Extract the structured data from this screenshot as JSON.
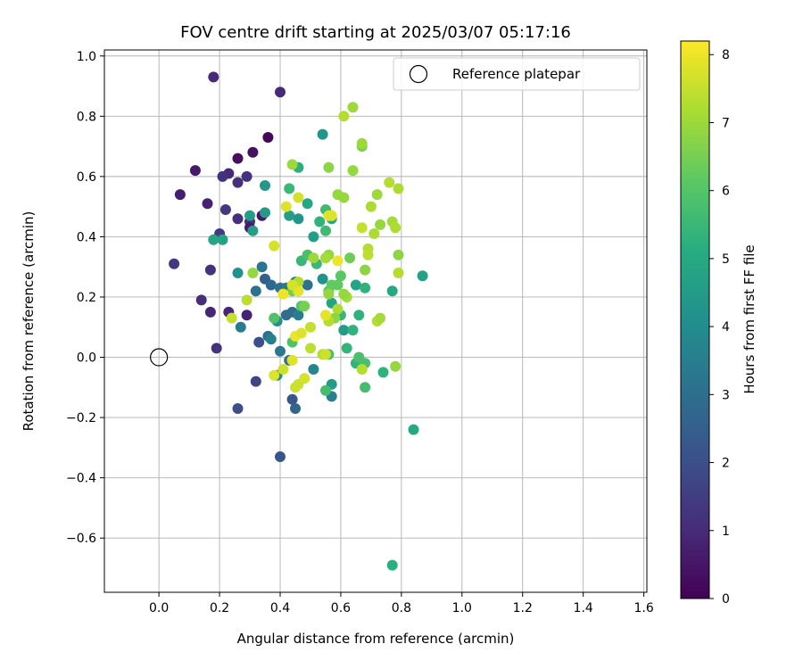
{
  "chart_data": {
    "type": "scatter",
    "title": "FOV centre drift starting at 2025/03/07 05:17:16",
    "xlabel": "Angular distance from reference (arcmin)",
    "ylabel": "Rotation from reference (arcmin)",
    "xlim": [
      -0.18,
      1.61
    ],
    "ylim": [
      -0.78,
      1.02
    ],
    "xticks": [
      0.0,
      0.2,
      0.4,
      0.6,
      0.8,
      1.0,
      1.2,
      1.4,
      1.6
    ],
    "xtick_labels": [
      "0.0",
      "0.2",
      "0.4",
      "0.6",
      "0.8",
      "1.0",
      "1.2",
      "1.4",
      "1.6"
    ],
    "yticks": [
      -0.6,
      -0.4,
      -0.2,
      0.0,
      0.2,
      0.4,
      0.6,
      0.8,
      1.0
    ],
    "ytick_labels": [
      "−0.6",
      "−0.4",
      "−0.2",
      "0.0",
      "0.2",
      "0.4",
      "0.6",
      "0.8",
      "1.0"
    ],
    "grid": true,
    "legend": {
      "placement": "top-right",
      "entries": [
        "Reference platepar"
      ]
    },
    "reference_point": {
      "x": 0.0,
      "y": 0.0
    },
    "colorbar": {
      "label": "Hours from first FF file",
      "range": [
        0,
        8.2
      ],
      "ticks": [
        0,
        1,
        2,
        3,
        4,
        5,
        6,
        7,
        8
      ],
      "tick_labels": [
        "0",
        "1",
        "2",
        "3",
        "4",
        "5",
        "6",
        "7",
        "8"
      ],
      "colormap": "viridis",
      "stops": [
        "#440154",
        "#472c7a",
        "#3b518b",
        "#2c718e",
        "#21908d",
        "#27ad81",
        "#5cc863",
        "#aadc32",
        "#fde725"
      ]
    },
    "points": [
      [
        0.18,
        0.93,
        1.0
      ],
      [
        0.4,
        0.88,
        1.0
      ],
      [
        0.36,
        0.73,
        0.2
      ],
      [
        0.26,
        0.66,
        0.3
      ],
      [
        0.31,
        0.68,
        0.4
      ],
      [
        0.12,
        0.62,
        0.6
      ],
      [
        0.23,
        0.61,
        1.0
      ],
      [
        0.21,
        0.6,
        1.2
      ],
      [
        0.29,
        0.6,
        1.2
      ],
      [
        0.26,
        0.58,
        1.1
      ],
      [
        0.07,
        0.54,
        0.7
      ],
      [
        0.16,
        0.51,
        0.8
      ],
      [
        0.22,
        0.49,
        1.3
      ],
      [
        0.26,
        0.46,
        1.1
      ],
      [
        0.3,
        0.45,
        1.2
      ],
      [
        0.34,
        0.47,
        0.5
      ],
      [
        0.2,
        0.41,
        1.4
      ],
      [
        0.3,
        0.43,
        0.6
      ],
      [
        0.05,
        0.31,
        1.3
      ],
      [
        0.17,
        0.29,
        1.2
      ],
      [
        0.14,
        0.19,
        1.1
      ],
      [
        0.17,
        0.15,
        0.9
      ],
      [
        0.23,
        0.15,
        0.9
      ],
      [
        0.29,
        0.14,
        0.8
      ],
      [
        0.19,
        0.03,
        1.2
      ],
      [
        0.54,
        0.74,
        4.3
      ],
      [
        0.35,
        0.57,
        4.4
      ],
      [
        0.31,
        0.42,
        4.6
      ],
      [
        0.18,
        0.39,
        4.9
      ],
      [
        0.21,
        0.39,
        4.7
      ],
      [
        0.3,
        0.47,
        4.6
      ],
      [
        0.35,
        0.48,
        4.5
      ],
      [
        0.26,
        0.28,
        4.2
      ],
      [
        0.34,
        0.3,
        3.2
      ],
      [
        0.32,
        0.22,
        3.1
      ],
      [
        0.35,
        0.26,
        2.5
      ],
      [
        0.37,
        0.24,
        2.8
      ],
      [
        0.4,
        0.23,
        3.1
      ],
      [
        0.42,
        0.23,
        3.3
      ],
      [
        0.27,
        0.1,
        3.4
      ],
      [
        0.33,
        0.05,
        2.0
      ],
      [
        0.36,
        0.07,
        3.0
      ],
      [
        0.37,
        0.06,
        3.6
      ],
      [
        0.4,
        0.02,
        3.3
      ],
      [
        0.39,
        0.12,
        4.1
      ],
      [
        0.42,
        0.14,
        2.9
      ],
      [
        0.44,
        0.15,
        2.9
      ],
      [
        0.46,
        0.14,
        3.5
      ],
      [
        0.45,
        0.25,
        3.5
      ],
      [
        0.49,
        0.24,
        3.1
      ],
      [
        0.32,
        -0.08,
        1.7
      ],
      [
        0.26,
        -0.17,
        2.0
      ],
      [
        0.39,
        -0.06,
        4.0
      ],
      [
        0.43,
        -0.01,
        2.9
      ],
      [
        0.44,
        -0.14,
        2.2
      ],
      [
        0.45,
        -0.17,
        2.7
      ],
      [
        0.51,
        -0.04,
        3.7
      ],
      [
        0.57,
        -0.13,
        3.5
      ],
      [
        0.57,
        -0.09,
        4.5
      ],
      [
        0.4,
        -0.33,
        2.2
      ],
      [
        0.43,
        0.56,
        5.5
      ],
      [
        0.46,
        0.63,
        5.2
      ],
      [
        0.43,
        0.47,
        4.6
      ],
      [
        0.46,
        0.46,
        4.3
      ],
      [
        0.49,
        0.51,
        4.9
      ],
      [
        0.51,
        0.4,
        4.6
      ],
      [
        0.53,
        0.45,
        5.3
      ],
      [
        0.55,
        0.42,
        5.6
      ],
      [
        0.55,
        0.49,
        5.6
      ],
      [
        0.57,
        0.46,
        5.0
      ],
      [
        0.47,
        0.32,
        5.5
      ],
      [
        0.49,
        0.34,
        5.8
      ],
      [
        0.52,
        0.31,
        5.5
      ],
      [
        0.54,
        0.26,
        4.2
      ],
      [
        0.56,
        0.22,
        6.1
      ],
      [
        0.57,
        0.24,
        6.2
      ],
      [
        0.59,
        0.24,
        6.2
      ],
      [
        0.6,
        0.27,
        6.1
      ],
      [
        0.57,
        0.18,
        4.8
      ],
      [
        0.6,
        0.14,
        5.5
      ],
      [
        0.61,
        0.09,
        4.5
      ],
      [
        0.62,
        0.03,
        5.4
      ],
      [
        0.64,
        0.09,
        5.3
      ],
      [
        0.66,
        0.14,
        5.3
      ],
      [
        0.65,
        0.24,
        4.8
      ],
      [
        0.68,
        0.23,
        5.3
      ],
      [
        0.77,
        0.22,
        5.0
      ],
      [
        0.87,
        0.27,
        4.7
      ],
      [
        0.65,
        -0.02,
        5.4
      ],
      [
        0.68,
        -0.02,
        5.8
      ],
      [
        0.66,
        0.0,
        5.8
      ],
      [
        0.68,
        -0.1,
        5.7
      ],
      [
        0.74,
        -0.05,
        5.3
      ],
      [
        0.84,
        -0.24,
        5.0
      ],
      [
        0.77,
        -0.69,
        5.2
      ],
      [
        0.55,
        -0.11,
        5.7
      ],
      [
        0.56,
        0.01,
        5.8
      ],
      [
        0.44,
        0.05,
        5.9
      ],
      [
        0.38,
        0.13,
        5.9
      ],
      [
        0.47,
        0.17,
        6.0
      ],
      [
        0.61,
        0.8,
        7.3
      ],
      [
        0.64,
        0.83,
        7.0
      ],
      [
        0.67,
        0.7,
        6.6
      ],
      [
        0.67,
        0.71,
        7.0
      ],
      [
        0.44,
        0.64,
        7.0
      ],
      [
        0.56,
        0.63,
        6.8
      ],
      [
        0.64,
        0.62,
        6.9
      ],
      [
        0.59,
        0.54,
        6.9
      ],
      [
        0.61,
        0.53,
        6.9
      ],
      [
        0.7,
        0.5,
        7.2
      ],
      [
        0.72,
        0.54,
        7.0
      ],
      [
        0.76,
        0.58,
        7.3
      ],
      [
        0.79,
        0.56,
        7.2
      ],
      [
        0.73,
        0.44,
        6.9
      ],
      [
        0.77,
        0.45,
        7.1
      ],
      [
        0.78,
        0.43,
        7.2
      ],
      [
        0.71,
        0.41,
        7.2
      ],
      [
        0.67,
        0.43,
        7.5
      ],
      [
        0.69,
        0.36,
        7.3
      ],
      [
        0.69,
        0.34,
        7.4
      ],
      [
        0.79,
        0.34,
        6.8
      ],
      [
        0.68,
        0.29,
        6.8
      ],
      [
        0.79,
        0.28,
        7.3
      ],
      [
        0.56,
        0.34,
        6.9
      ],
      [
        0.55,
        0.33,
        7.1
      ],
      [
        0.51,
        0.33,
        7.0
      ],
      [
        0.44,
        0.22,
        6.5
      ],
      [
        0.46,
        0.25,
        7.3
      ],
      [
        0.48,
        0.17,
        6.5
      ],
      [
        0.56,
        0.21,
        6.9
      ],
      [
        0.59,
        0.16,
        7.2
      ],
      [
        0.62,
        0.2,
        7.1
      ],
      [
        0.61,
        0.21,
        6.9
      ],
      [
        0.58,
        0.13,
        6.8
      ],
      [
        0.56,
        0.12,
        7.3
      ],
      [
        0.72,
        0.12,
        7.3
      ],
      [
        0.73,
        0.13,
        7.1
      ],
      [
        0.78,
        -0.03,
        6.9
      ],
      [
        0.67,
        -0.04,
        7.3
      ],
      [
        0.54,
        0.01,
        7.3
      ],
      [
        0.46,
        -0.09,
        7.6
      ],
      [
        0.48,
        -0.07,
        7.7
      ],
      [
        0.41,
        -0.04,
        7.6
      ],
      [
        0.38,
        -0.06,
        7.8
      ],
      [
        0.44,
        -0.01,
        7.8
      ],
      [
        0.45,
        0.07,
        8.0
      ],
      [
        0.47,
        0.08,
        7.8
      ],
      [
        0.5,
        0.1,
        7.5
      ],
      [
        0.5,
        0.03,
        7.4
      ],
      [
        0.55,
        0.01,
        7.6
      ],
      [
        0.55,
        0.14,
        7.9
      ],
      [
        0.59,
        0.32,
        8.0
      ],
      [
        0.41,
        0.21,
        8.0
      ],
      [
        0.46,
        0.22,
        7.9
      ],
      [
        0.44,
        0.24,
        7.7
      ],
      [
        0.38,
        0.37,
        7.7
      ],
      [
        0.42,
        0.5,
        7.8
      ],
      [
        0.46,
        0.53,
        7.7
      ],
      [
        0.56,
        0.47,
        7.9
      ],
      [
        0.29,
        0.19,
        7.4
      ],
      [
        0.24,
        0.13,
        7.5
      ],
      [
        0.31,
        0.28,
        6.9
      ],
      [
        0.45,
        -0.1,
        7.6
      ],
      [
        0.57,
        0.47,
        7.8
      ],
      [
        0.63,
        0.33,
        6.4
      ]
    ]
  }
}
